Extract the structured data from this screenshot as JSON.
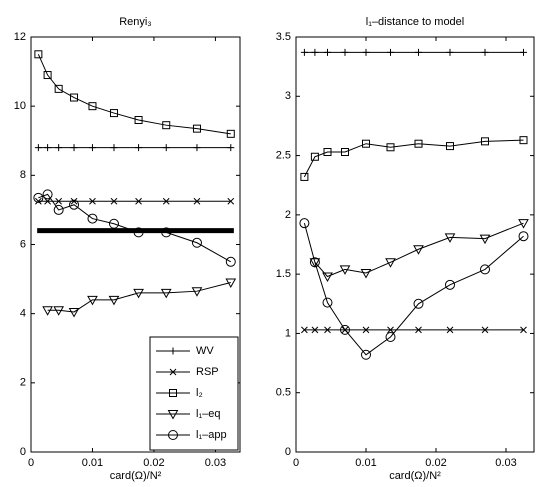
{
  "chart_data": [
    {
      "type": "line",
      "title": "Renyi₃",
      "xlabel": "card(Ω)/N²",
      "x": [
        0.0012,
        0.0027,
        0.0045,
        0.007,
        0.01,
        0.0135,
        0.0175,
        0.022,
        0.027,
        0.0325
      ],
      "xlim": [
        0,
        0.034
      ],
      "xticks": [
        0,
        0.01,
        0.02,
        0.03
      ],
      "ylim": [
        0,
        12
      ],
      "yticks": [
        0,
        2,
        4,
        6,
        8,
        10,
        12
      ],
      "legend": "lower right",
      "series": [
        {
          "name": "WV",
          "color": "#000000",
          "marker": "+",
          "values": [
            8.8,
            8.8,
            8.8,
            8.8,
            8.8,
            8.8,
            8.8,
            8.8,
            8.8,
            8.8
          ]
        },
        {
          "name": "RSP",
          "color": "#000000",
          "marker": "x",
          "values": [
            7.25,
            7.25,
            7.25,
            7.25,
            7.25,
            7.25,
            7.25,
            7.25,
            7.25,
            7.25
          ]
        },
        {
          "name": "l₂",
          "color": "#000000",
          "marker": "s",
          "values": [
            11.5,
            10.9,
            10.5,
            10.25,
            10.0,
            9.8,
            9.6,
            9.45,
            9.35,
            9.2
          ]
        },
        {
          "name": "l₁–eq",
          "color": "#000000",
          "marker": "v",
          "values": [
            null,
            4.1,
            4.1,
            4.05,
            4.4,
            4.4,
            4.6,
            4.6,
            4.65,
            4.9
          ]
        },
        {
          "name": "l₁–app",
          "color": "#000000",
          "marker": "o",
          "values": [
            7.35,
            7.45,
            7.0,
            7.15,
            6.75,
            6.6,
            6.35,
            6.35,
            6.05,
            5.5
          ]
        },
        {
          "color": "#000000",
          "linewidth": 5,
          "x": [
            0.001,
            0.033
          ],
          "values": [
            6.4,
            6.4
          ]
        }
      ]
    },
    {
      "type": "line",
      "title": "l₁–distance to model",
      "xlabel": "card(Ω)/N²",
      "x": [
        0.0012,
        0.0027,
        0.0045,
        0.007,
        0.01,
        0.0135,
        0.0175,
        0.022,
        0.027,
        0.0325
      ],
      "xlim": [
        0,
        0.034
      ],
      "xticks": [
        0,
        0.01,
        0.02,
        0.03
      ],
      "ylim": [
        0,
        3.5
      ],
      "yticks": [
        0,
        0.5,
        1,
        1.5,
        2,
        2.5,
        3,
        3.5
      ],
      "series": [
        {
          "color": "#000000",
          "marker": "+",
          "values": [
            3.37,
            3.37,
            3.37,
            3.37,
            3.37,
            3.37,
            3.37,
            3.37,
            3.37,
            3.37
          ]
        },
        {
          "color": "#000000",
          "marker": "x",
          "values": [
            1.03,
            1.03,
            1.03,
            1.03,
            1.03,
            1.03,
            1.03,
            1.03,
            1.03,
            1.03
          ]
        },
        {
          "color": "#000000",
          "marker": "s",
          "values": [
            2.32,
            2.49,
            2.53,
            2.53,
            2.6,
            2.57,
            2.6,
            2.58,
            2.62,
            2.63
          ]
        },
        {
          "color": "#000000",
          "marker": "v",
          "values": [
            null,
            1.6,
            1.48,
            1.54,
            1.51,
            1.6,
            1.71,
            1.81,
            1.8,
            1.93
          ]
        },
        {
          "color": "#000000",
          "marker": "o",
          "values": [
            1.93,
            1.6,
            1.26,
            1.03,
            0.82,
            0.97,
            1.25,
            1.41,
            1.54,
            1.82
          ]
        }
      ]
    }
  ]
}
